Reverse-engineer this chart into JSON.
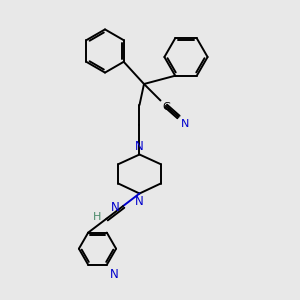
{
  "bg_color": "#e8e8e8",
  "bond_color": "#000000",
  "N_color": "#0000cc",
  "H_color": "#4a8a6a",
  "figsize": [
    3.0,
    3.0
  ],
  "dpi": 100,
  "xlim": [
    0,
    10
  ],
  "ylim": [
    0,
    10
  ]
}
